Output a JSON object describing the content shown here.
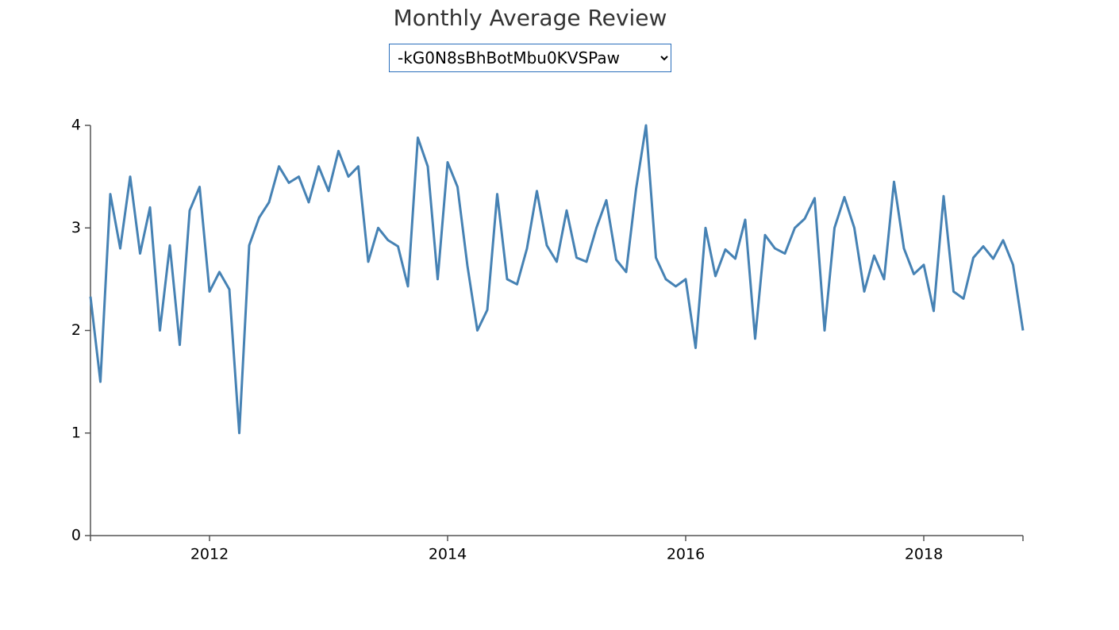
{
  "dropdown": {
    "selected": "-kG0N8sBhBotMbu0KVSPaw"
  },
  "chart_data": {
    "type": "line",
    "title": "Monthly Average Review",
    "x": [
      "2011-01",
      "2011-02",
      "2011-03",
      "2011-04",
      "2011-05",
      "2011-06",
      "2011-07",
      "2011-08",
      "2011-09",
      "2011-10",
      "2011-11",
      "2011-12",
      "2012-01",
      "2012-02",
      "2012-03",
      "2012-04",
      "2012-05",
      "2012-06",
      "2012-07",
      "2012-08",
      "2012-09",
      "2012-10",
      "2012-11",
      "2012-12",
      "2013-01",
      "2013-02",
      "2013-03",
      "2013-04",
      "2013-05",
      "2013-06",
      "2013-07",
      "2013-08",
      "2013-09",
      "2013-10",
      "2013-11",
      "2013-12",
      "2014-01",
      "2014-02",
      "2014-03",
      "2014-04",
      "2014-05",
      "2014-06",
      "2014-07",
      "2014-08",
      "2014-09",
      "2014-10",
      "2014-11",
      "2014-12",
      "2015-01",
      "2015-02",
      "2015-03",
      "2015-04",
      "2015-05",
      "2015-06",
      "2015-07",
      "2015-08",
      "2015-09",
      "2015-10",
      "2015-11",
      "2015-12",
      "2016-01",
      "2016-02",
      "2016-03",
      "2016-04",
      "2016-05",
      "2016-06",
      "2016-07",
      "2016-08",
      "2016-09",
      "2016-10",
      "2016-11",
      "2016-12",
      "2017-01",
      "2017-02",
      "2017-03",
      "2017-04",
      "2017-05",
      "2017-06",
      "2017-07",
      "2017-08",
      "2017-09",
      "2017-10",
      "2017-11",
      "2017-12",
      "2018-01",
      "2018-02",
      "2018-03",
      "2018-04",
      "2018-05",
      "2018-06",
      "2018-07",
      "2018-08",
      "2018-09",
      "2018-10",
      "2018-11"
    ],
    "values": [
      2.33,
      1.5,
      3.33,
      2.8,
      3.5,
      2.75,
      3.2,
      2.0,
      2.83,
      1.86,
      3.17,
      3.4,
      2.38,
      2.57,
      2.4,
      1.0,
      2.83,
      3.1,
      3.25,
      3.6,
      3.44,
      3.5,
      3.25,
      3.6,
      3.36,
      3.75,
      3.5,
      3.6,
      2.67,
      3.0,
      2.88,
      2.82,
      2.43,
      3.88,
      3.6,
      2.5,
      3.64,
      3.4,
      2.63,
      2.0,
      2.2,
      3.33,
      2.5,
      2.45,
      2.8,
      3.36,
      2.83,
      2.67,
      3.17,
      2.71,
      2.67,
      3.0,
      3.27,
      2.69,
      2.57,
      3.38,
      4.0,
      2.71,
      2.5,
      2.43,
      2.5,
      1.83,
      3.0,
      2.53,
      2.79,
      2.7,
      3.08,
      1.92,
      2.93,
      2.8,
      2.75,
      3.0,
      3.09,
      3.29,
      2.0,
      3.0,
      3.3,
      3.0,
      2.38,
      2.73,
      2.5,
      3.45,
      2.8,
      2.55,
      2.64,
      2.19,
      3.31,
      2.38,
      2.31,
      2.71,
      2.82,
      2.7,
      2.88,
      2.64,
      2.0
    ],
    "color": "#4682b4",
    "xlim": [
      "2011-01",
      "2018-11"
    ],
    "xticks": [
      {
        "value": "2012-01",
        "label": "2012"
      },
      {
        "value": "2014-01",
        "label": "2014"
      },
      {
        "value": "2016-01",
        "label": "2016"
      },
      {
        "value": "2018-01",
        "label": "2018"
      }
    ],
    "ylim": [
      0,
      4
    ],
    "yticks": [
      0,
      1,
      2,
      3,
      4
    ],
    "grid": false
  }
}
